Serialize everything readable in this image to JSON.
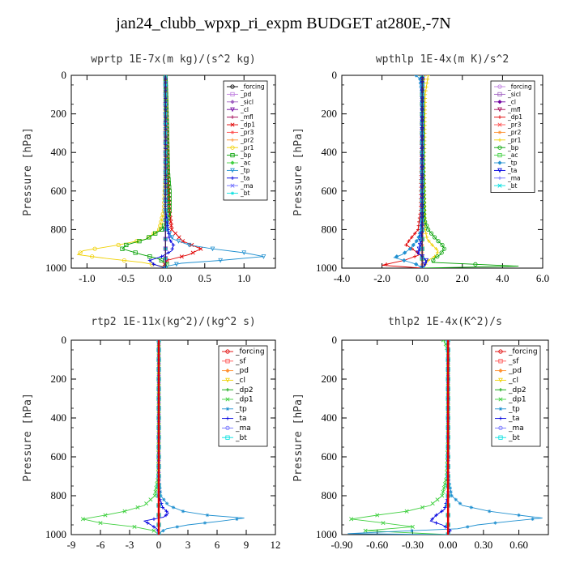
{
  "figure": {
    "title": "jan24_clubb_wpxp_ri_expm  BUDGET at280E,-7N"
  },
  "chart_data": [
    {
      "type": "line",
      "title": "wprtp   1E-7x(m kg)/(s^2 kg)",
      "ylabel": "Pressure [hPa]",
      "xlim": [
        -1.2,
        1.4
      ],
      "ylim": [
        1000,
        0
      ],
      "xticks": [
        -1.0,
        -0.5,
        0.0,
        0.5,
        1.0
      ],
      "xtick_labels": [
        "-1.0",
        "-0.5",
        "0.0",
        "0.5",
        "1.0"
      ],
      "yticks": [
        0,
        200,
        400,
        600,
        800,
        1000
      ],
      "grid": false,
      "legend": "top-right",
      "series": [
        {
          "name": "_forcing",
          "color": "#000000",
          "p": [
            0,
            1000
          ],
          "x": [
            0,
            0
          ]
        },
        {
          "name": "_pd",
          "color": "#c080e0",
          "p": [
            0,
            1000
          ],
          "x": [
            0,
            0
          ]
        },
        {
          "name": "_sicl",
          "color": "#a060c0",
          "p": [
            0,
            1000
          ],
          "x": [
            0,
            0
          ]
        },
        {
          "name": "_cl",
          "color": "#7000a0",
          "p": [
            0,
            1000
          ],
          "x": [
            0,
            0
          ]
        },
        {
          "name": "_mfl",
          "color": "#a00050",
          "p": [
            0,
            1000
          ],
          "x": [
            0,
            0
          ]
        },
        {
          "name": "_dp1",
          "color": "#e00000",
          "p": [
            0,
            100,
            300,
            500,
            600,
            700,
            800,
            860,
            900,
            930,
            960,
            985,
            1000
          ],
          "x": [
            0,
            0.01,
            0.02,
            0.03,
            0.04,
            0.05,
            0.08,
            0.22,
            0.45,
            0.3,
            0.02,
            -0.02,
            0
          ]
        },
        {
          "name": "_pr3",
          "color": "#ff5050",
          "p": [
            0,
            1000
          ],
          "x": [
            0,
            0
          ]
        },
        {
          "name": "_pr2",
          "color": "#ff9030",
          "p": [
            0,
            1000
          ],
          "x": [
            0,
            0
          ]
        },
        {
          "name": "_pr1",
          "color": "#f0d000",
          "p": [
            0,
            500,
            700,
            800,
            850,
            880,
            910,
            930,
            950,
            970,
            990,
            1000
          ],
          "x": [
            0,
            0,
            -0.02,
            -0.08,
            -0.25,
            -0.6,
            -1.05,
            -1.12,
            -0.75,
            -0.3,
            -0.05,
            0
          ]
        },
        {
          "name": "_bp",
          "color": "#00a000",
          "p": [
            0,
            300,
            500,
            600,
            700,
            750,
            800,
            850,
            880,
            900,
            930,
            950,
            975,
            990,
            1000
          ],
          "x": [
            0,
            0.02,
            0.03,
            0.05,
            0.05,
            0.03,
            -0.05,
            -0.25,
            -0.5,
            -0.55,
            -0.3,
            -0.1,
            0.02,
            0.01,
            0
          ]
        },
        {
          "name": "_ac",
          "color": "#40d040",
          "p": [
            0,
            1000
          ],
          "x": [
            0,
            0
          ]
        },
        {
          "name": "_tp",
          "color": "#2090d0",
          "p": [
            0,
            700,
            800,
            850,
            880,
            900,
            920,
            940,
            960,
            975,
            990,
            1000
          ],
          "x": [
            0,
            0,
            0.02,
            0.1,
            0.3,
            0.6,
            1.0,
            1.25,
            0.7,
            0.2,
            0.02,
            0
          ]
        },
        {
          "name": "_ta",
          "color": "#0000e0",
          "p": [
            0,
            700,
            850,
            880,
            910,
            940,
            960,
            980,
            1000
          ],
          "x": [
            0,
            0,
            0.05,
            0.1,
            0.08,
            -0.05,
            -0.2,
            -0.15,
            0
          ]
        },
        {
          "name": "_ma",
          "color": "#7070ff",
          "p": [
            0,
            1000
          ],
          "x": [
            0,
            0
          ]
        },
        {
          "name": "_bt",
          "color": "#00e0e0",
          "p": [
            0,
            1000
          ],
          "x": [
            0,
            0
          ]
        }
      ]
    },
    {
      "type": "line",
      "title": "wpthlp   1E-4x(m K)/s^2",
      "ylabel": "Pressure [hPa]",
      "xlim": [
        -4.0,
        6.0
      ],
      "ylim": [
        1000,
        0
      ],
      "xticks": [
        -4.0,
        -2.0,
        0.0,
        2.0,
        4.0,
        6.0
      ],
      "xtick_labels": [
        "-4.0",
        "-2.0",
        "0.0",
        "2.0",
        "4.0",
        "6.0"
      ],
      "yticks": [
        0,
        200,
        400,
        600,
        800,
        1000
      ],
      "grid": false,
      "legend": "top-right",
      "series": [
        {
          "name": "_forcing",
          "color": "#c080e0",
          "p": [
            0,
            1000
          ],
          "x": [
            0,
            0
          ]
        },
        {
          "name": "_sicl",
          "color": "#a060c0",
          "p": [
            0,
            1000
          ],
          "x": [
            0,
            0
          ]
        },
        {
          "name": "_cl",
          "color": "#7000a0",
          "p": [
            0,
            1000
          ],
          "x": [
            0,
            0
          ]
        },
        {
          "name": "_mfl",
          "color": "#a00050",
          "p": [
            0,
            1000
          ],
          "x": [
            0,
            0
          ]
        },
        {
          "name": "_dp1",
          "color": "#e00000",
          "p": [
            0,
            200,
            500,
            700,
            800,
            850,
            880,
            900,
            930,
            960,
            985,
            1000
          ],
          "x": [
            0,
            -0.02,
            -0.05,
            -0.08,
            -0.2,
            -0.6,
            -0.8,
            -0.5,
            -0.1,
            -0.9,
            -2.0,
            0
          ]
        },
        {
          "name": "_pr3",
          "color": "#ff5050",
          "p": [
            0,
            1000
          ],
          "x": [
            0,
            0
          ]
        },
        {
          "name": "_pr2",
          "color": "#ff9030",
          "p": [
            0,
            50,
            500,
            1000
          ],
          "x": [
            0.1,
            0.05,
            0.02,
            0
          ]
        },
        {
          "name": "_pr1",
          "color": "#f0d000",
          "p": [
            0,
            100,
            500,
            800,
            850,
            880,
            910,
            935,
            960,
            990,
            1000
          ],
          "x": [
            0.3,
            0.15,
            0.1,
            0.15,
            0.25,
            0.5,
            0.8,
            0.7,
            0.3,
            0.1,
            0
          ]
        },
        {
          "name": "_bp",
          "color": "#00a000",
          "p": [
            0,
            500,
            750,
            800,
            850,
            880,
            900,
            930,
            950,
            970,
            990,
            1000
          ],
          "x": [
            0,
            0.05,
            0.1,
            0.3,
            0.7,
            1.0,
            1.1,
            0.9,
            0.6,
            0.5,
            4.8,
            0
          ]
        },
        {
          "name": "_ac",
          "color": "#40d040",
          "p": [
            0,
            1000
          ],
          "x": [
            0,
            0
          ]
        },
        {
          "name": "_tp",
          "color": "#2090d0",
          "p": [
            0,
            20,
            100,
            700,
            800,
            850,
            900,
            930,
            945,
            960,
            980,
            1000
          ],
          "x": [
            -0.3,
            -0.1,
            0,
            0,
            -0.05,
            -0.2,
            -0.6,
            -1.0,
            -1.4,
            -0.9,
            -0.3,
            0
          ]
        },
        {
          "name": "_ta",
          "color": "#0000e0",
          "p": [
            0,
            800,
            880,
            920,
            960,
            990,
            1000
          ],
          "x": [
            0,
            0,
            -0.1,
            -0.2,
            0.2,
            0.1,
            0
          ]
        },
        {
          "name": "_ma",
          "color": "#7070ff",
          "p": [
            0,
            1000
          ],
          "x": [
            0,
            0
          ]
        },
        {
          "name": "_bt",
          "color": "#00e0e0",
          "p": [
            0,
            1000
          ],
          "x": [
            0,
            0
          ]
        }
      ]
    },
    {
      "type": "line",
      "title": "rtp2   1E-11x(kg^2)/(kg^2 s)",
      "ylabel": "Pressure [hPa]",
      "xlim": [
        -9,
        12
      ],
      "ylim": [
        1000,
        0
      ],
      "xticks": [
        -9,
        -6,
        -3,
        0,
        3,
        6,
        9,
        12
      ],
      "xtick_labels": [
        "-9",
        "-6",
        "-3",
        "0",
        "3",
        "6",
        "9",
        "12"
      ],
      "yticks": [
        0,
        200,
        400,
        600,
        800,
        1000
      ],
      "grid": false,
      "legend": "top-right",
      "series": [
        {
          "name": "_forcing",
          "color": "#e00000",
          "p": [
            0,
            1000
          ],
          "x": [
            0,
            0
          ]
        },
        {
          "name": "_sf",
          "color": "#ff5050",
          "p": [
            0,
            1000
          ],
          "x": [
            0,
            0
          ]
        },
        {
          "name": "_pd",
          "color": "#ff9030",
          "p": [
            0,
            1000
          ],
          "x": [
            0,
            0
          ]
        },
        {
          "name": "_cl",
          "color": "#f0d000",
          "p": [
            0,
            1000
          ],
          "x": [
            0,
            0
          ]
        },
        {
          "name": "_dp2",
          "color": "#00a000",
          "p": [
            0,
            1000
          ],
          "x": [
            0,
            0
          ]
        },
        {
          "name": "_dp1",
          "color": "#40d040",
          "p": [
            0,
            500,
            700,
            800,
            850,
            880,
            900,
            920,
            940,
            960,
            980,
            1000
          ],
          "x": [
            0,
            0,
            -0.05,
            -0.4,
            -1.5,
            -3.5,
            -5.5,
            -7.8,
            -6.0,
            -2.5,
            -0.5,
            0
          ]
        },
        {
          "name": "_tp",
          "color": "#2090d0",
          "p": [
            0,
            700,
            800,
            850,
            880,
            900,
            915,
            930,
            950,
            970,
            990,
            1000
          ],
          "x": [
            0,
            0,
            0.2,
            1.0,
            2.5,
            5.0,
            8.8,
            6.5,
            3.0,
            0.8,
            0.1,
            0
          ]
        },
        {
          "name": "_ta",
          "color": "#0000e0",
          "p": [
            0,
            800,
            860,
            890,
            910,
            930,
            950,
            970,
            990,
            1000
          ],
          "x": [
            0,
            0,
            0.4,
            1.0,
            0.5,
            -1.5,
            -0.8,
            -0.2,
            0,
            0
          ]
        },
        {
          "name": "_ma",
          "color": "#7070ff",
          "p": [
            0,
            1000
          ],
          "x": [
            0,
            0
          ]
        },
        {
          "name": "_bt",
          "color": "#00e0e0",
          "p": [
            0,
            1000
          ],
          "x": [
            0,
            0
          ]
        }
      ]
    },
    {
      "type": "line",
      "title": "thlp2   1E-4x(K^2)/s",
      "ylabel": "Pressure [hPa]",
      "xlim": [
        -0.9,
        0.85
      ],
      "ylim": [
        1000,
        0
      ],
      "xticks": [
        -0.9,
        -0.6,
        -0.3,
        0.0,
        0.3,
        0.6
      ],
      "xtick_labels": [
        "-0.90",
        "-0.60",
        "-0.30",
        "0.00",
        "0.30",
        "0.60"
      ],
      "yticks": [
        0,
        200,
        400,
        600,
        800,
        1000
      ],
      "grid": false,
      "legend": "top-right",
      "series": [
        {
          "name": "_forcing",
          "color": "#e00000",
          "p": [
            0,
            1000
          ],
          "x": [
            0,
            0
          ]
        },
        {
          "name": "_sf",
          "color": "#ff5050",
          "p": [
            0,
            1000
          ],
          "x": [
            0,
            0
          ]
        },
        {
          "name": "_pd",
          "color": "#ff9030",
          "p": [
            0,
            1000
          ],
          "x": [
            0,
            0
          ]
        },
        {
          "name": "_cl",
          "color": "#f0d000",
          "p": [
            0,
            1000
          ],
          "x": [
            0,
            0
          ]
        },
        {
          "name": "_dp2",
          "color": "#00a000",
          "p": [
            0,
            1000
          ],
          "x": [
            0,
            0
          ]
        },
        {
          "name": "_dp1",
          "color": "#40d040",
          "p": [
            0,
            20,
            60,
            200,
            500,
            700,
            800,
            850,
            880,
            900,
            920,
            940,
            960,
            980,
            1000
          ],
          "x": [
            -0.04,
            -0.02,
            0,
            0,
            0,
            -0.01,
            -0.05,
            -0.15,
            -0.35,
            -0.6,
            -0.82,
            -0.55,
            -0.3,
            -0.7,
            0
          ]
        },
        {
          "name": "_tp",
          "color": "#2090d0",
          "p": [
            0,
            700,
            800,
            850,
            880,
            900,
            915,
            930,
            950,
            970,
            985,
            995,
            1000
          ],
          "x": [
            0,
            0,
            0.03,
            0.12,
            0.35,
            0.6,
            0.8,
            0.55,
            0.25,
            0.08,
            -0.5,
            -0.85,
            0
          ]
        },
        {
          "name": "_ta",
          "color": "#0000e0",
          "p": [
            0,
            800,
            870,
            900,
            930,
            950,
            975,
            1000
          ],
          "x": [
            0,
            0,
            -0.03,
            -0.1,
            -0.15,
            -0.05,
            0.02,
            0
          ]
        },
        {
          "name": "_ma",
          "color": "#7070ff",
          "p": [
            0,
            1000
          ],
          "x": [
            0,
            0
          ]
        },
        {
          "name": "_bt",
          "color": "#00e0e0",
          "p": [
            0,
            1000
          ],
          "x": [
            0,
            0
          ]
        }
      ]
    }
  ]
}
